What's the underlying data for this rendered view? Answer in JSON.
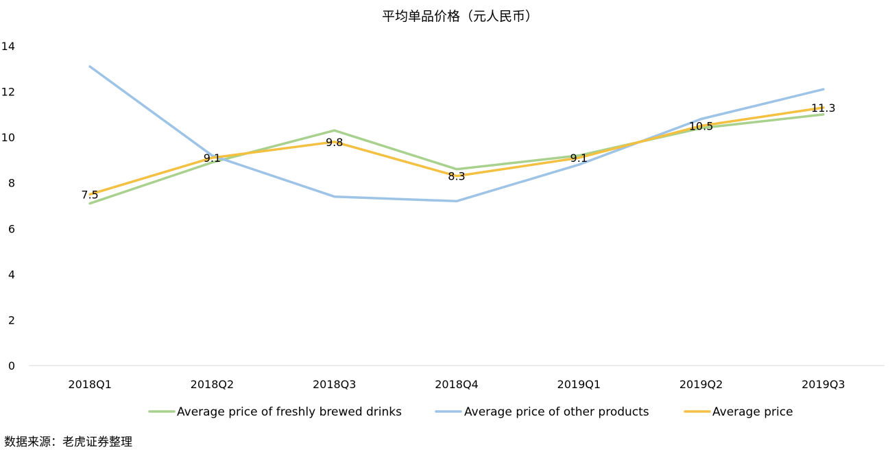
{
  "chart_data": {
    "type": "line",
    "title": "平均单品价格（元人民币）",
    "categories": [
      "2018Q1",
      "2018Q2",
      "2018Q3",
      "2018Q4",
      "2019Q1",
      "2019Q2",
      "2019Q3"
    ],
    "ylim": [
      0,
      14
    ],
    "yticks": [
      "0",
      "2",
      "4",
      "6",
      "8",
      "10",
      "12",
      "14"
    ],
    "grid": false,
    "legend_position": "bottom",
    "series": [
      {
        "name": "Average price of freshly brewed drinks",
        "color": "#a9d18e",
        "values": [
          7.1,
          8.9,
          10.3,
          8.6,
          9.2,
          10.4,
          11.0
        ],
        "labels": null
      },
      {
        "name": "Average price of other products",
        "color": "#9dc3e6",
        "values": [
          13.1,
          9.2,
          7.4,
          7.2,
          8.8,
          10.8,
          12.1
        ],
        "labels": null
      },
      {
        "name": "Average price",
        "color": "#f4c042",
        "values": [
          7.5,
          9.1,
          9.8,
          8.3,
          9.1,
          10.5,
          11.3
        ],
        "labels": [
          "7.5",
          "9.1",
          "9.8",
          "8.3",
          "9.1",
          "10.5",
          "11.3"
        ]
      }
    ]
  },
  "source_note": "数据来源：老虎证券整理"
}
